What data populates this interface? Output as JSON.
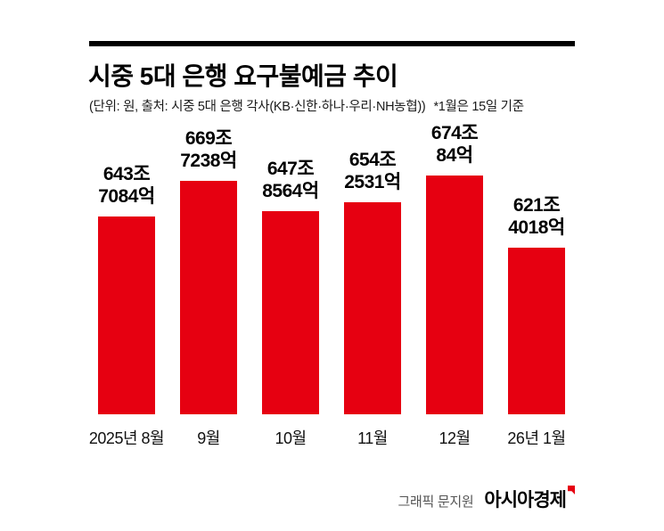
{
  "header": {
    "source": "(단위: 원, 출처: 시중 5대 은행 각사(KB·신한·하나·우리·NH농협))",
    "note": "*1월은 15일 기준"
  },
  "chart_data": {
    "type": "bar",
    "title": "시중 5대 은행 요구불예금 추이",
    "categories": [
      "2025년 8월",
      "9월",
      "10월",
      "11월",
      "12월",
      "26년 1월"
    ],
    "values": [
      643.7084,
      669.7238,
      647.8564,
      654.2531,
      674.0084,
      621.4018
    ],
    "unit": "조 원",
    "value_labels": [
      "643조\n7084억",
      "669조\n7238억",
      "647조\n8564억",
      "654조\n2531억",
      "674조\n84억",
      "621조\n4018억"
    ],
    "bar_color": "#e60011",
    "ylim": [
      500,
      675
    ],
    "grid": false,
    "legend": false
  },
  "footer": {
    "credit": "그래픽 문지원",
    "brand": "아시아경제"
  }
}
